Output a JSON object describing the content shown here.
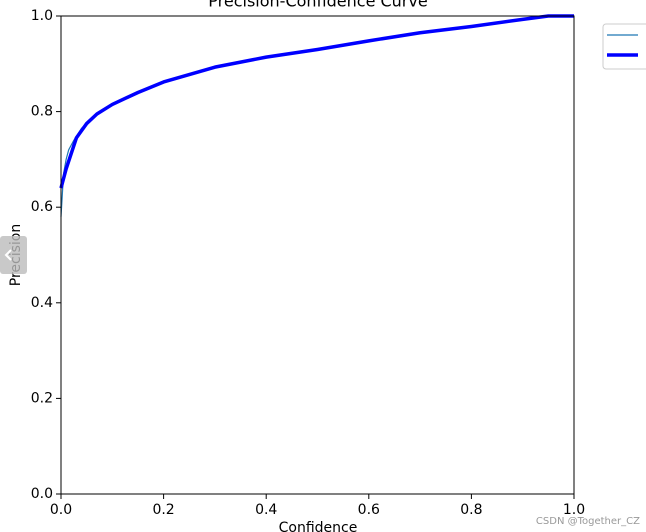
{
  "chart_data": {
    "type": "line",
    "title": "Precision-Confidence Curve",
    "xlabel": "Confidence",
    "ylabel": "Precision",
    "xlim": [
      0,
      1
    ],
    "ylim": [
      0,
      1
    ],
    "xticks": [
      {
        "value": 0,
        "label": "0.0"
      },
      {
        "value": 0.2,
        "label": "0.2"
      },
      {
        "value": 0.4,
        "label": "0.4"
      },
      {
        "value": 0.6,
        "label": "0.6"
      },
      {
        "value": 0.8,
        "label": "0.8"
      },
      {
        "value": 1,
        "label": "1.0"
      }
    ],
    "yticks": [
      {
        "value": 0,
        "label": "0.0"
      },
      {
        "value": 0.2,
        "label": "0.2"
      },
      {
        "value": 0.4,
        "label": "0.4"
      },
      {
        "value": 0.6,
        "label": "0.6"
      },
      {
        "value": 0.8,
        "label": "0.8"
      },
      {
        "value": 1,
        "label": "1.0"
      }
    ],
    "series": [
      {
        "color": "#1f77b4",
        "width": 1.2,
        "x": [
          0,
          0.005,
          0.01,
          0.015,
          0.025,
          0.04,
          0.07,
          0.1,
          0.15,
          0.2,
          0.3,
          0.4,
          0.5,
          0.6,
          0.7,
          0.8,
          0.9,
          0.95,
          1
        ],
        "values": [
          0.58,
          0.67,
          0.7,
          0.72,
          0.74,
          0.765,
          0.795,
          0.815,
          0.84,
          0.862,
          0.893,
          0.914,
          0.93,
          0.948,
          0.965,
          0.978,
          0.993,
          1,
          1
        ]
      },
      {
        "color": "#0000ff",
        "width": 3.5,
        "x": [
          0,
          0.01,
          0.03,
          0.05,
          0.07,
          0.1,
          0.15,
          0.2,
          0.3,
          0.4,
          0.5,
          0.6,
          0.7,
          0.8,
          0.9,
          0.95,
          1
        ],
        "values": [
          0.64,
          0.68,
          0.745,
          0.775,
          0.795,
          0.815,
          0.84,
          0.862,
          0.893,
          0.914,
          0.93,
          0.948,
          0.965,
          0.978,
          0.993,
          1,
          1
        ]
      }
    ]
  },
  "watermark": "CSDN @Together_CZ"
}
